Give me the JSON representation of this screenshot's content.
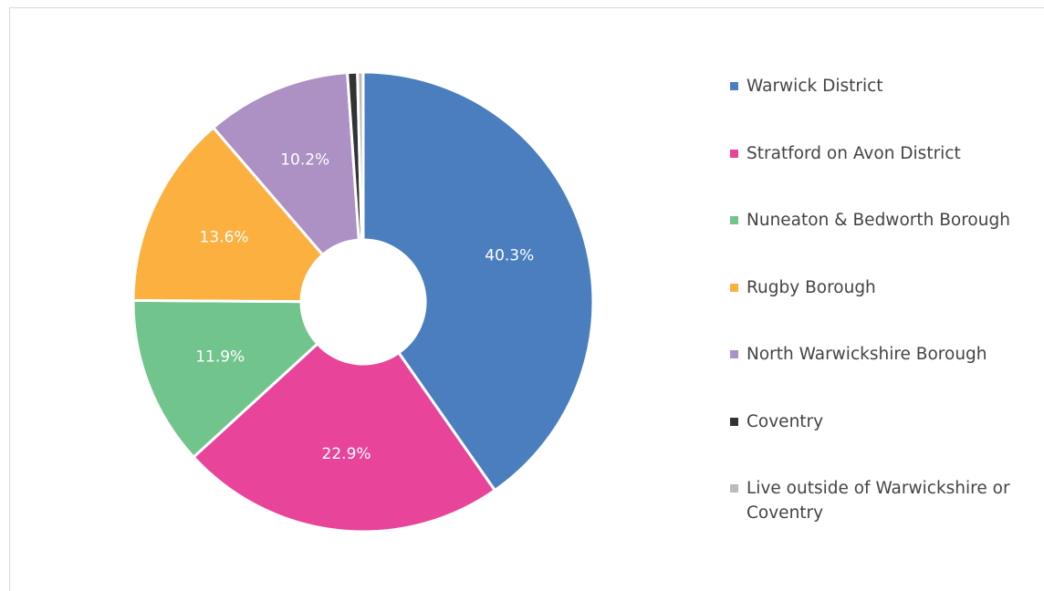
{
  "chart_data": {
    "type": "pie",
    "categories": [
      "Warwick District",
      "Stratford on Avon District",
      "Nuneaton & Bedworth Borough",
      "Rugby Borough",
      "North Warwickshire Borough",
      "Coventry",
      "Live outside of Warwickshire or Coventry"
    ],
    "values": [
      40.3,
      22.9,
      11.9,
      13.6,
      10.2,
      0.7,
      0.4
    ],
    "value_labels": [
      "40.3%",
      "22.9%",
      "11.9%",
      "13.6%",
      "10.2%",
      null,
      null
    ],
    "colors": [
      "#4a7ebf",
      "#e8449a",
      "#72c48d",
      "#fbb040",
      "#ad90c4",
      "#333333",
      "#bcbcbc"
    ],
    "legend": "right"
  }
}
